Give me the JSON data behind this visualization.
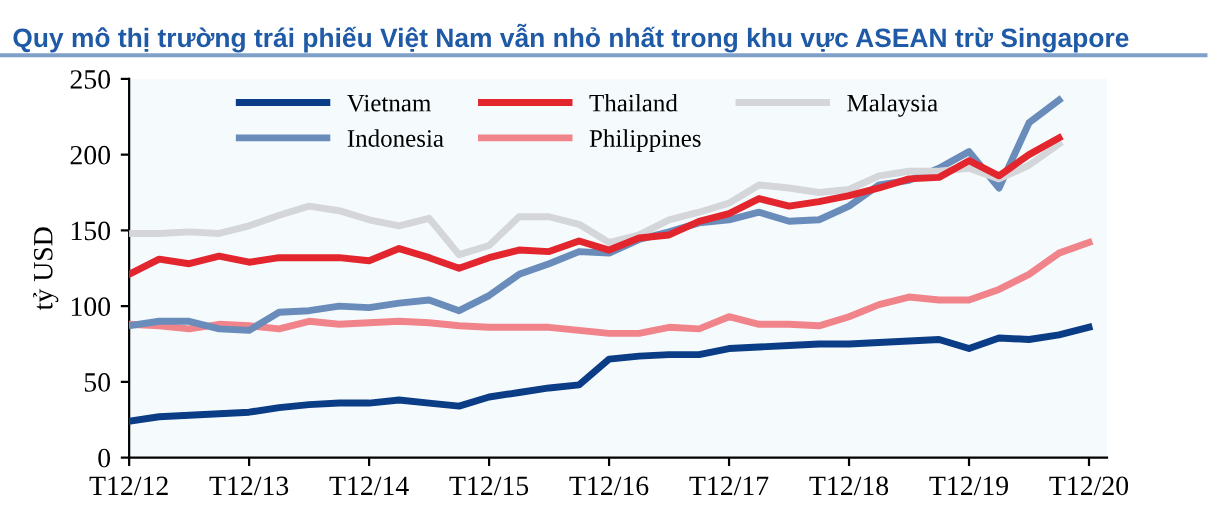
{
  "chart_data": {
    "type": "line",
    "title": "Quy mô thị trường trái phiếu Việt Nam vẫn nhỏ nhất trong khu vực ASEAN trừ Singapore",
    "ylabel": "tỷ USD",
    "categories": [
      "T12/12",
      null,
      null,
      null,
      "T12/13",
      null,
      null,
      null,
      "T12/14",
      null,
      null,
      null,
      "T12/15",
      null,
      null,
      null,
      "T12/16",
      null,
      null,
      null,
      "T12/17",
      null,
      null,
      null,
      "T12/18",
      null,
      null,
      null,
      "T12/19",
      null,
      null,
      null,
      "T12/20"
    ],
    "series": [
      {
        "name": "Vietnam",
        "color": "#0b3d86",
        "values": [
          24,
          27,
          28,
          29,
          30,
          33,
          35,
          36,
          36,
          38,
          36,
          34,
          40,
          43,
          46,
          48,
          65,
          67,
          68,
          68,
          72,
          73,
          74,
          75,
          75,
          76,
          77,
          78,
          72,
          79,
          78,
          81,
          86
        ]
      },
      {
        "name": "Thailand",
        "color": "#e3262e",
        "values": [
          121,
          131,
          128,
          133,
          129,
          132,
          132,
          132,
          130,
          138,
          132,
          125,
          132,
          137,
          136,
          143,
          137,
          145,
          147,
          156,
          161,
          171,
          166,
          169,
          173,
          178,
          184,
          185,
          196,
          186,
          200,
          211,
          null
        ]
      },
      {
        "name": "Malaysia",
        "color": "#d4d6da",
        "values": [
          148,
          148,
          149,
          148,
          153,
          160,
          166,
          163,
          157,
          153,
          158,
          134,
          140,
          159,
          159,
          154,
          142,
          147,
          157,
          162,
          168,
          180,
          178,
          175,
          177,
          186,
          189,
          189,
          191,
          184,
          193,
          207,
          null
        ]
      },
      {
        "name": "Indonesia",
        "color": "#6a8cba",
        "values": [
          87,
          90,
          90,
          85,
          84,
          96,
          97,
          100,
          99,
          102,
          104,
          97,
          107,
          121,
          128,
          136,
          135,
          144,
          149,
          155,
          157,
          162,
          156,
          157,
          166,
          180,
          183,
          191,
          202,
          178,
          221,
          236,
          null
        ]
      },
      {
        "name": "Philippines",
        "color": "#f0848a",
        "values": [
          88,
          87,
          85,
          88,
          87,
          85,
          90,
          88,
          89,
          90,
          89,
          87,
          86,
          86,
          86,
          84,
          82,
          82,
          86,
          85,
          93,
          88,
          88,
          87,
          93,
          101,
          106,
          104,
          104,
          111,
          121,
          135,
          142
        ]
      }
    ],
    "ylim": [
      0,
      250
    ],
    "yticks": [
      0,
      50,
      100,
      150,
      200,
      250
    ],
    "grid": false,
    "legend": "top",
    "marker": "none",
    "line_style": "solid"
  }
}
